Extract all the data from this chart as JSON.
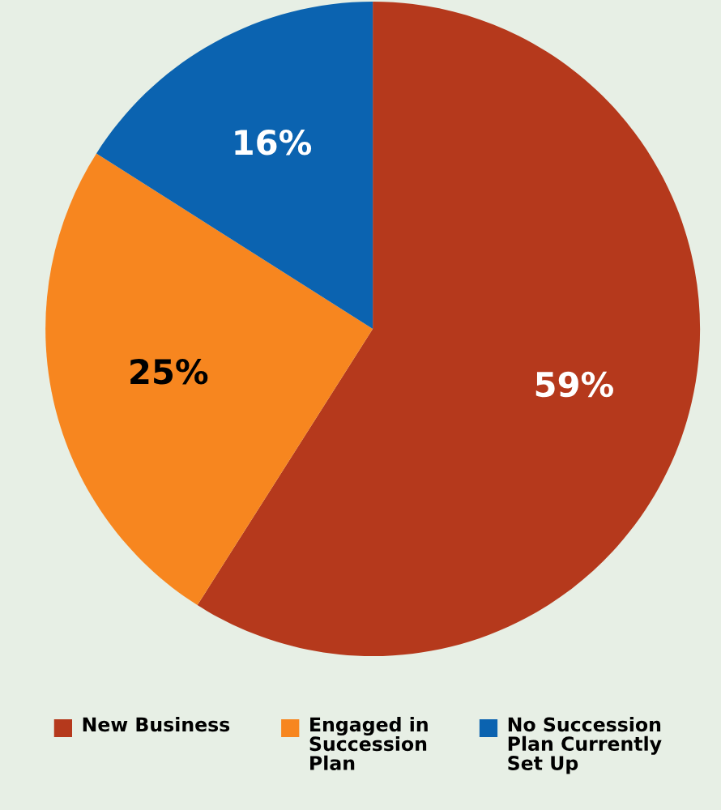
{
  "chart_data": {
    "type": "pie",
    "categories": [
      "New Business",
      "Engaged in Succession Plan",
      "No Succession Plan Currently Set Up"
    ],
    "values": [
      59,
      25,
      16
    ],
    "value_labels": [
      "59%",
      "25%",
      "16%"
    ],
    "colors": [
      "#b5391c",
      "#f7861f",
      "#0b63b0"
    ],
    "legend": "bottom"
  }
}
